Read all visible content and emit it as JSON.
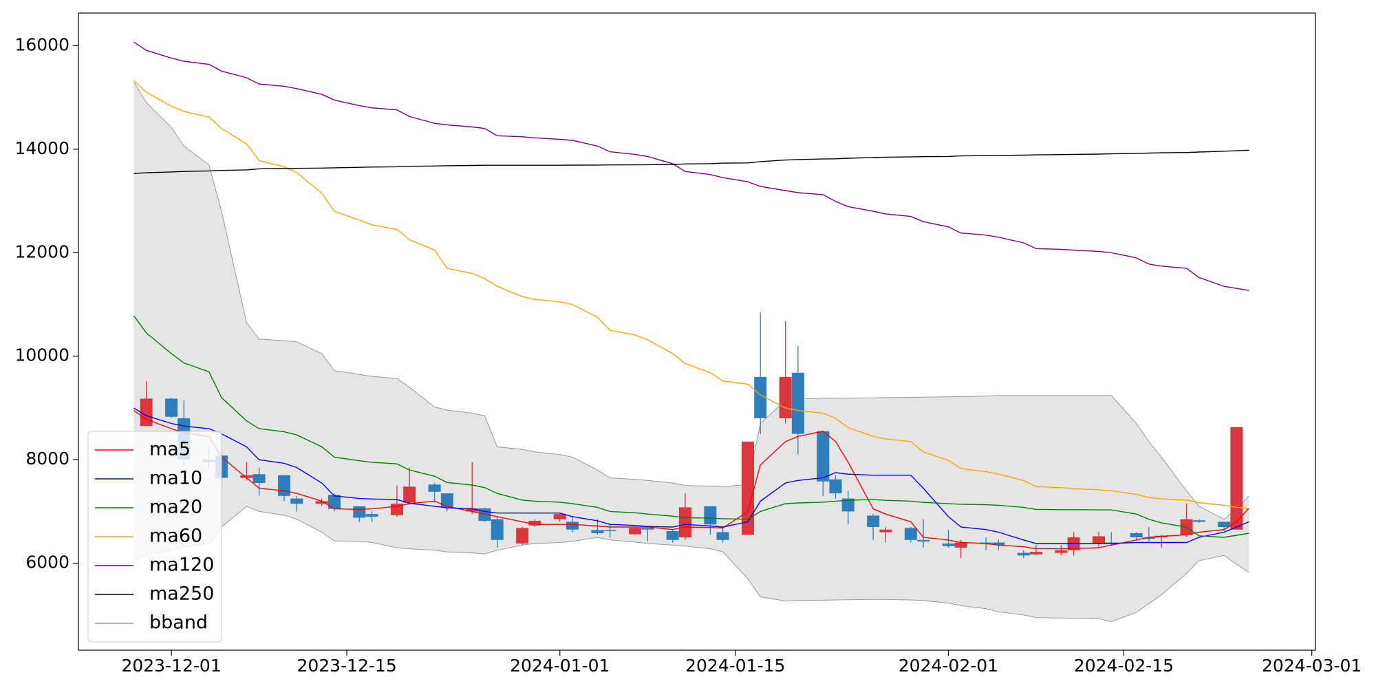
{
  "chart_data": {
    "type": "candlestick",
    "x": [
      "2023-11-28",
      "2023-11-29",
      "2023-12-01",
      "2023-12-02",
      "2023-12-04",
      "2023-12-05",
      "2023-12-07",
      "2023-12-08",
      "2023-12-10",
      "2023-12-11",
      "2023-12-13",
      "2023-12-14",
      "2023-12-16",
      "2023-12-17",
      "2023-12-19",
      "2023-12-20",
      "2023-12-22",
      "2023-12-23",
      "2023-12-25",
      "2023-12-26",
      "2023-12-27",
      "2023-12-29",
      "2023-12-30",
      "2024-01-01",
      "2024-01-02",
      "2024-01-04",
      "2024-01-05",
      "2024-01-07",
      "2024-01-08",
      "2024-01-10",
      "2024-01-11",
      "2024-01-13",
      "2024-01-14",
      "2024-01-16",
      "2024-01-17",
      "2024-01-19",
      "2024-01-20",
      "2024-01-22",
      "2024-01-23",
      "2024-01-24",
      "2024-01-26",
      "2024-01-27",
      "2024-01-29",
      "2024-01-30",
      "2024-02-01",
      "2024-02-02",
      "2024-02-04",
      "2024-02-05",
      "2024-02-07",
      "2024-02-08",
      "2024-02-10",
      "2024-02-11",
      "2024-02-13",
      "2024-02-14",
      "2024-02-16",
      "2024-02-17",
      "2024-02-18",
      "2024-02-20",
      "2024-02-21",
      "2024-02-23",
      "2024-02-24",
      "2024-02-25"
    ],
    "open": [
      null,
      8650,
      9180,
      8800,
      8000,
      8080,
      7650,
      7720,
      7700,
      7250,
      7150,
      7320,
      7100,
      6950,
      6930,
      7170,
      7520,
      7350,
      7000,
      7060,
      6850,
      6380,
      6730,
      6850,
      6800,
      6640,
      6640,
      6560,
      6680,
      6620,
      6500,
      7100,
      6600,
      6550,
      9600,
      8800,
      9680,
      8550,
      7620,
      7250,
      6920,
      6600,
      6680,
      6450,
      6380,
      6300,
      6400,
      6400,
      6200,
      6170,
      6200,
      6250,
      6380,
      6400,
      6580,
      6500,
      6500,
      6550,
      6830,
      6800,
      6650,
      null
    ],
    "high": [
      null,
      9520,
      9200,
      9150,
      8250,
      8200,
      7950,
      7850,
      7700,
      7300,
      7250,
      7350,
      7100,
      7000,
      7500,
      7850,
      7550,
      7350,
      7950,
      7070,
      6900,
      6700,
      6850,
      6980,
      6900,
      6850,
      6750,
      6700,
      6700,
      6650,
      7350,
      7100,
      6700,
      8350,
      10850,
      10680,
      10200,
      8550,
      7700,
      7400,
      6950,
      6700,
      6700,
      6850,
      6650,
      6450,
      6500,
      6450,
      6250,
      6350,
      6350,
      6600,
      6600,
      6600,
      6600,
      6700,
      6550,
      7150,
      6850,
      6800,
      8630,
      null
    ],
    "low": [
      null,
      8650,
      8800,
      7900,
      7850,
      7500,
      7600,
      7300,
      7200,
      7000,
      7100,
      7000,
      6800,
      6800,
      6900,
      7150,
      7200,
      7000,
      6950,
      6800,
      6300,
      6350,
      6700,
      6800,
      6600,
      6550,
      6500,
      6550,
      6420,
      6400,
      6450,
      6550,
      6400,
      6550,
      8500,
      8700,
      8100,
      7300,
      7250,
      6750,
      6450,
      6400,
      6400,
      6300,
      6300,
      6100,
      6250,
      6250,
      6100,
      6150,
      6150,
      6150,
      6300,
      6350,
      6450,
      6420,
      6300,
      6500,
      6780,
      6620,
      6650,
      null
    ],
    "close": [
      null,
      9180,
      8830,
      8000,
      7950,
      7650,
      7700,
      7550,
      7300,
      7150,
      7200,
      7050,
      6880,
      6900,
      7150,
      7480,
      7380,
      7070,
      7060,
      6820,
      6450,
      6680,
      6820,
      6950,
      6650,
      6580,
      6620,
      6680,
      6650,
      6450,
      7080,
      6750,
      6450,
      8350,
      8800,
      9600,
      8500,
      7580,
      7350,
      7000,
      6700,
      6650,
      6450,
      6420,
      6330,
      6400,
      6380,
      6350,
      6150,
      6220,
      6250,
      6500,
      6520,
      6380,
      6500,
      6470,
      6530,
      6850,
      6800,
      6700,
      8630,
      null
    ],
    "up_color": "#d9363e",
    "down_color": "#2e7ebc",
    "series": [
      {
        "name": "ma5",
        "color": "#ff0000",
        "values": [
          8950,
          8780,
          8600,
          8520,
          8450,
          8050,
          7650,
          7450,
          7400,
          7350,
          7200,
          7050,
          7040,
          7050,
          7100,
          7150,
          7200,
          7100,
          7000,
          6950,
          6900,
          6800,
          6750,
          6750,
          6750,
          6720,
          6700,
          6700,
          6700,
          6650,
          6700,
          6690,
          6680,
          7000,
          7900,
          8350,
          8450,
          8550,
          8350,
          7950,
          7050,
          6950,
          6800,
          6500,
          6450,
          6400,
          6380,
          6350,
          6320,
          6280,
          6280,
          6280,
          6300,
          6350,
          6450,
          6500,
          6520,
          6550,
          6600,
          6650,
          6800,
          7070
        ]
      },
      {
        "name": "ma10",
        "color": "#0000ff",
        "values": [
          9000,
          8850,
          8700,
          8650,
          8600,
          8500,
          8250,
          8000,
          7930,
          7850,
          7550,
          7300,
          7250,
          7240,
          7230,
          7160,
          7100,
          7070,
          7050,
          7000,
          6970,
          6970,
          6970,
          6970,
          6900,
          6820,
          6750,
          6730,
          6710,
          6700,
          6750,
          6720,
          6700,
          6800,
          7200,
          7550,
          7600,
          7650,
          7750,
          7720,
          7700,
          7700,
          7700,
          7450,
          6900,
          6700,
          6650,
          6600,
          6450,
          6380,
          6380,
          6380,
          6380,
          6380,
          6400,
          6400,
          6400,
          6400,
          6500,
          6600,
          6700,
          6800
        ]
      },
      {
        "name": "ma20",
        "color": "#008000",
        "values": [
          10780,
          10450,
          10050,
          9870,
          9700,
          9200,
          8750,
          8600,
          8540,
          8480,
          8250,
          8050,
          7980,
          7950,
          7920,
          7800,
          7680,
          7560,
          7510,
          7460,
          7350,
          7220,
          7200,
          7180,
          7150,
          7080,
          7000,
          6975,
          6950,
          6910,
          6880,
          6870,
          6860,
          6850,
          7000,
          7150,
          7165,
          7180,
          7200,
          7215,
          7230,
          7215,
          7200,
          7175,
          7150,
          7140,
          7130,
          7120,
          7080,
          7040,
          7035,
          7035,
          7030,
          7030,
          6950,
          6850,
          6780,
          6700,
          6530,
          6500,
          6540,
          6580
        ]
      },
      {
        "name": "ma60",
        "color": "#ffa500",
        "values": [
          15330,
          15100,
          14830,
          14730,
          14620,
          14400,
          14100,
          13780,
          13660,
          13550,
          13150,
          12800,
          12630,
          12540,
          12450,
          12250,
          12050,
          11700,
          11600,
          11500,
          11350,
          11150,
          11100,
          11050,
          11000,
          10750,
          10500,
          10410,
          10320,
          10050,
          9860,
          9680,
          9520,
          9460,
          9250,
          9000,
          8950,
          8900,
          8800,
          8620,
          8450,
          8400,
          8350,
          8150,
          7990,
          7830,
          7770,
          7720,
          7600,
          7480,
          7460,
          7440,
          7420,
          7400,
          7330,
          7270,
          7245,
          7220,
          7170,
          7120,
          7080,
          7060
        ]
      },
      {
        "name": "ma120",
        "color": "#800080",
        "values": [
          16070,
          15910,
          15760,
          15700,
          15640,
          15510,
          15380,
          15260,
          15215,
          15170,
          15060,
          14950,
          14840,
          14800,
          14760,
          14630,
          14500,
          14470,
          14430,
          14400,
          14260,
          14240,
          14220,
          14190,
          14170,
          14060,
          13950,
          13900,
          13860,
          13720,
          13570,
          13510,
          13450,
          13370,
          13280,
          13200,
          13160,
          13120,
          12990,
          12890,
          12800,
          12750,
          12700,
          12600,
          12500,
          12380,
          12340,
          12300,
          12190,
          12080,
          12065,
          12050,
          12025,
          12000,
          11900,
          11780,
          11740,
          11700,
          11520,
          11350,
          11310,
          11270
        ]
      },
      {
        "name": "ma250",
        "color": "#000000",
        "values": [
          13530,
          13545,
          13560,
          13570,
          13580,
          13590,
          13600,
          13620,
          13625,
          13630,
          13635,
          13640,
          13650,
          13655,
          13660,
          13670,
          13675,
          13680,
          13685,
          13690,
          13690,
          13690,
          13690,
          13690,
          13692,
          13694,
          13696,
          13698,
          13700,
          13705,
          13715,
          13720,
          13730,
          13735,
          13760,
          13790,
          13800,
          13810,
          13815,
          13825,
          13840,
          13845,
          13850,
          13855,
          13860,
          13870,
          13875,
          13880,
          13885,
          13890,
          13895,
          13900,
          13905,
          13910,
          13920,
          13925,
          13930,
          13935,
          13945,
          13960,
          13970,
          13980
        ]
      }
    ],
    "band": {
      "name": "bband",
      "color": "#999999",
      "fill": "#e5e5e5",
      "upper": [
        15300,
        14900,
        14420,
        14060,
        13700,
        12800,
        10650,
        10330,
        10300,
        10280,
        10050,
        9720,
        9650,
        9610,
        9570,
        9400,
        9020,
        8960,
        8900,
        8850,
        8250,
        8200,
        8150,
        8100,
        8050,
        7800,
        7650,
        7620,
        7600,
        7550,
        7500,
        7490,
        7480,
        7520,
        8700,
        9150,
        9180,
        9185,
        9190,
        9190,
        9195,
        9200,
        9205,
        9210,
        9215,
        9220,
        9230,
        9240,
        9240,
        9240,
        9240,
        9240,
        9240,
        9240,
        8700,
        8350,
        8050,
        7400,
        7100,
        6850,
        7050,
        7300
      ],
      "lower": [
        6080,
        6160,
        6250,
        6320,
        6380,
        6700,
        7100,
        7000,
        6930,
        6850,
        6600,
        6430,
        6420,
        6400,
        6300,
        6280,
        6250,
        6220,
        6200,
        6180,
        6250,
        6350,
        6380,
        6400,
        6420,
        6500,
        6450,
        6410,
        6380,
        6350,
        6330,
        6280,
        6220,
        5700,
        5350,
        5270,
        5280,
        5285,
        5290,
        5295,
        5300,
        5300,
        5290,
        5280,
        5230,
        5180,
        5120,
        5060,
        5000,
        4950,
        4940,
        4935,
        4930,
        4870,
        5050,
        5220,
        5390,
        5800,
        6050,
        6150,
        5980,
        5820
      ]
    },
    "xlim": [
      "2023-11-23T14:00:00Z",
      "2024-03-01T07:00:00Z"
    ],
    "xticks": [
      "2023-12-01",
      "2023-12-15",
      "2024-01-01",
      "2024-01-15",
      "2024-02-01",
      "2024-02-15",
      "2024-03-01"
    ],
    "ylim": [
      4320,
      16630
    ],
    "yticks": [
      6000,
      8000,
      10000,
      12000,
      14000,
      16000
    ],
    "grid": false,
    "legend": "lower left"
  }
}
